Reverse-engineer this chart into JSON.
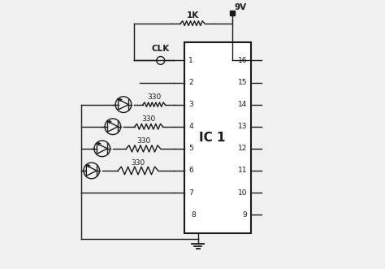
{
  "bg_color": "#f0f0f0",
  "ic_label": "IC 1",
  "resistor_labels": [
    "330",
    "330",
    "330",
    "330"
  ],
  "top_resistor_label": "1K",
  "vcc_label": "9V",
  "clk_label": "CLK",
  "line_color": "#1a1a1a",
  "text_color": "#1a1a1a",
  "font_size": 7.5,
  "ic_left_pin_labels": [
    "1",
    "2",
    "3",
    "4",
    "5",
    "6",
    "7",
    "8"
  ],
  "ic_right_pin_labels": [
    "16",
    "15",
    "14",
    "13",
    "12",
    "11",
    "10",
    "9"
  ]
}
